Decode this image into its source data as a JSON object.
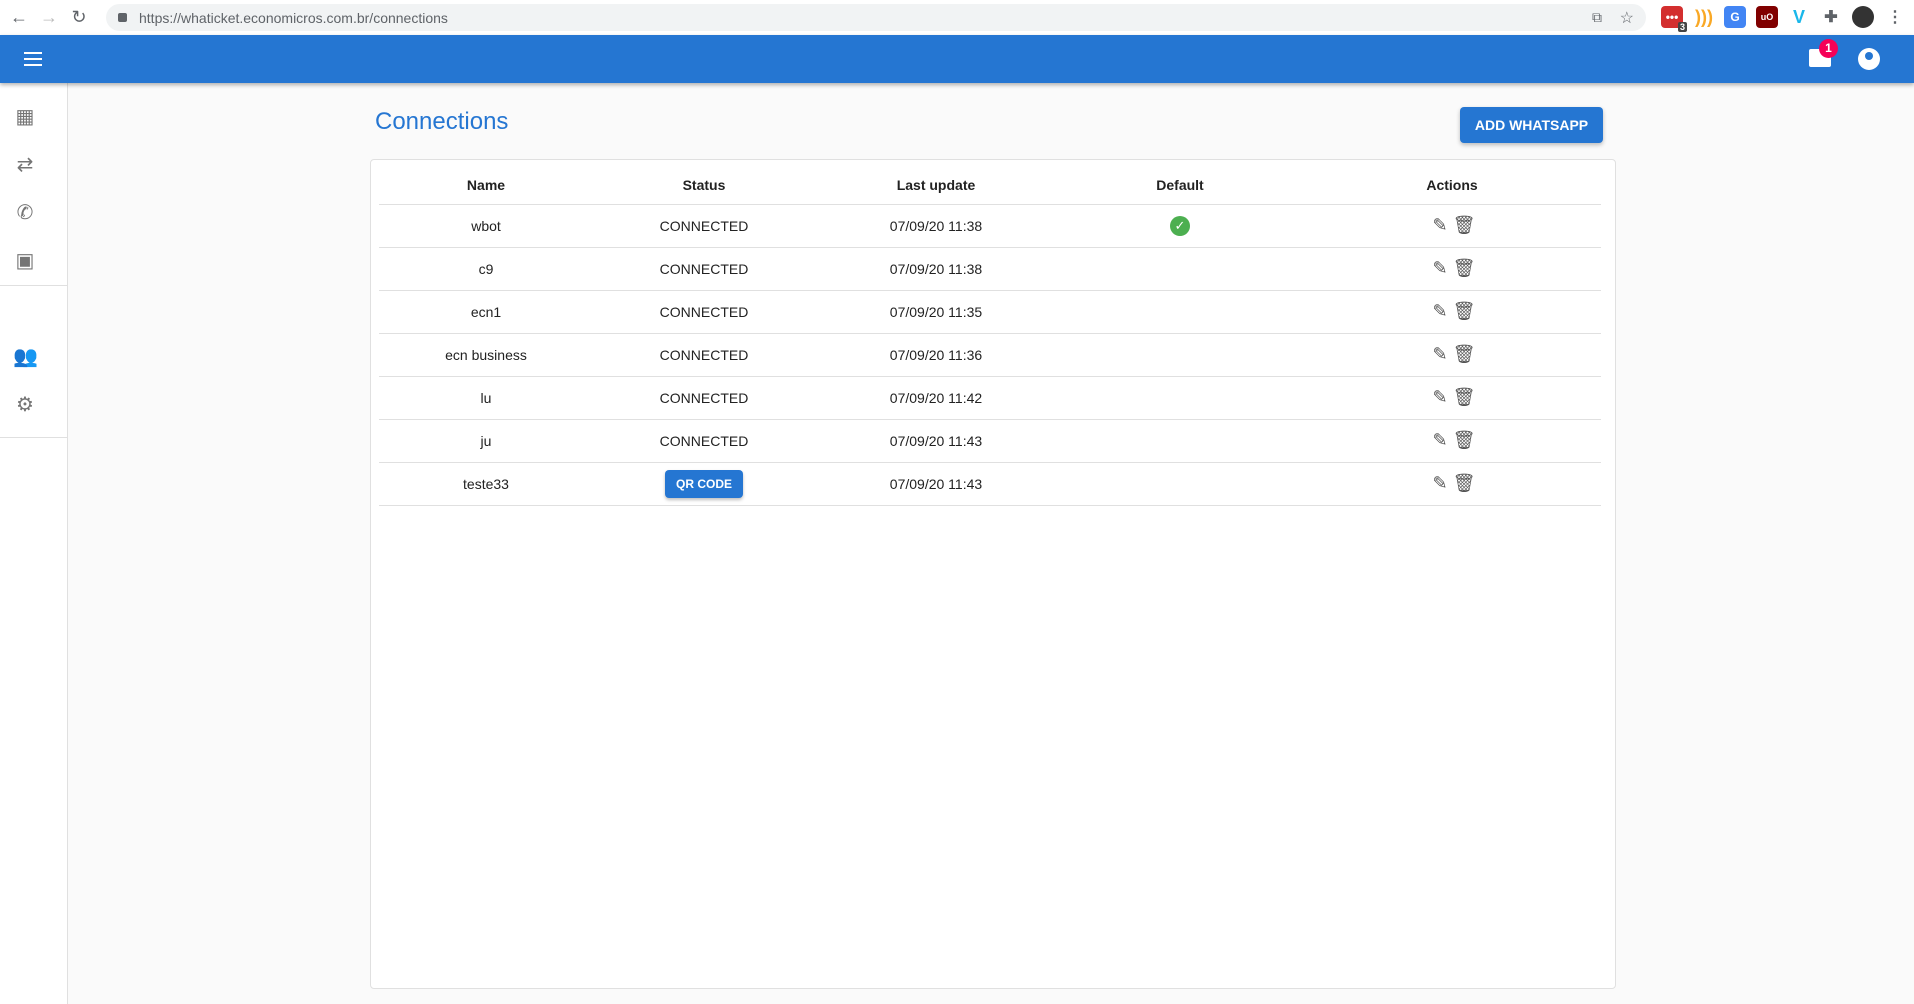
{
  "browser": {
    "url": "https://whaticket.economicros.com.br/connections",
    "extension_badge": "3"
  },
  "appbar": {
    "notification_count": "1"
  },
  "page": {
    "title": "Connections",
    "add_button": "ADD WHATSAPP"
  },
  "table": {
    "headers": [
      "Name",
      "Status",
      "Last update",
      "Default",
      "Actions"
    ],
    "rows": [
      {
        "name": "wbot",
        "status": "CONNECTED",
        "updated": "07/09/20 11:38",
        "default": true
      },
      {
        "name": "c9",
        "status": "CONNECTED",
        "updated": "07/09/20 11:38",
        "default": false
      },
      {
        "name": "ecn1",
        "status": "CONNECTED",
        "updated": "07/09/20 11:35",
        "default": false
      },
      {
        "name": "ecn business",
        "status": "CONNECTED",
        "updated": "07/09/20 11:36",
        "default": false
      },
      {
        "name": "lu",
        "status": "CONNECTED",
        "updated": "07/09/20 11:42",
        "default": false
      },
      {
        "name": "ju",
        "status": "CONNECTED",
        "updated": "07/09/20 11:43",
        "default": false
      },
      {
        "name": "teste33",
        "status": "QR CODE",
        "updated": "07/09/20 11:43",
        "default": false
      }
    ]
  },
  "colors": {
    "primary": "#2576d2",
    "success": "#4caf50",
    "badge": "#f50057"
  }
}
